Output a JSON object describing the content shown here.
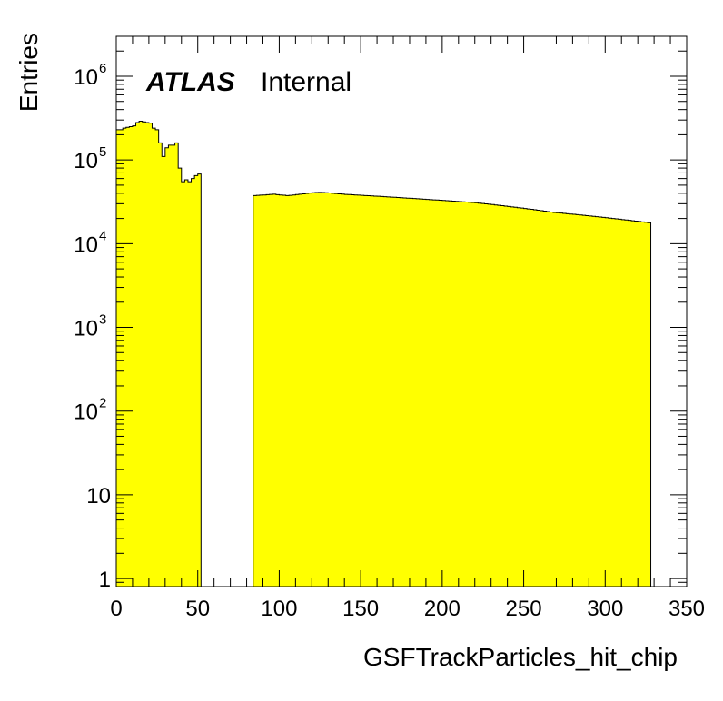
{
  "chart_data": {
    "type": "histogram",
    "title": "",
    "xlabel": "GSFTrackParticles_hit_chip",
    "ylabel": "Entries",
    "xlim": [
      0,
      350
    ],
    "ylim": [
      0.8,
      3000000
    ],
    "yscale": "log",
    "x_ticks": [
      0,
      50,
      100,
      150,
      200,
      250,
      300,
      350
    ],
    "y_ticks": [
      {
        "value": 1,
        "base": "1",
        "exp": ""
      },
      {
        "value": 10,
        "base": "10",
        "exp": ""
      },
      {
        "value": 100,
        "base": "10",
        "exp": "2"
      },
      {
        "value": 1000,
        "base": "10",
        "exp": "3"
      },
      {
        "value": 10000,
        "base": "10",
        "exp": "4"
      },
      {
        "value": 100000,
        "base": "10",
        "exp": "5"
      },
      {
        "value": 1000000,
        "base": "10",
        "exp": "6"
      }
    ],
    "fill_color": "#ffff00",
    "line_color": "#000000",
    "grid": false,
    "atlas_label": "ATLAS",
    "atlas_sublabel": "Internal",
    "bin_width": 2,
    "series": [
      {
        "x_start": 0,
        "values": [
          230000,
          230000,
          240000,
          245000,
          250000,
          255000,
          280000,
          290000,
          285000,
          280000,
          275000,
          240000,
          230000,
          160000,
          110000,
          140000,
          150000,
          150000,
          160000,
          80000,
          55000,
          58000,
          55000,
          60000,
          65000,
          68000
        ]
      },
      {
        "x_start": 84,
        "values": [
          37500,
          37800,
          38000,
          38200,
          38500,
          38800,
          39000,
          38500,
          38200,
          37900,
          37600,
          37800,
          38200,
          38600,
          39000,
          39400,
          39800,
          40200,
          40600,
          40800,
          41000,
          40800,
          40600,
          40300,
          40000,
          39700,
          39400,
          39100,
          38800,
          38600,
          38400,
          38200,
          38000,
          37800,
          37600,
          37400,
          37200,
          37000,
          36800,
          36600,
          36400,
          36200,
          36000,
          35800,
          35600,
          35400,
          35200,
          35000,
          34800,
          34600,
          34400,
          34200,
          34000,
          33800,
          33600,
          33400,
          33200,
          33000,
          32800,
          32600,
          32400,
          32200,
          32000,
          31800,
          31600,
          31400,
          31200,
          31000,
          30800,
          30500,
          30200,
          29900,
          29600,
          29300,
          29000,
          28700,
          28400,
          28100,
          27800,
          27500,
          27200,
          26900,
          26600,
          26300,
          26000,
          25700,
          25400,
          25100,
          24800,
          24500,
          24200,
          23900,
          23600,
          23400,
          23200,
          23000,
          22800,
          22600,
          22400,
          22200,
          22000,
          21800,
          21600,
          21400,
          21200,
          21000,
          20800,
          20600,
          20400,
          20200,
          20000,
          19800,
          19600,
          19400,
          19200,
          19000,
          18800,
          18600,
          18400,
          18200,
          18000,
          17800
        ]
      }
    ]
  }
}
